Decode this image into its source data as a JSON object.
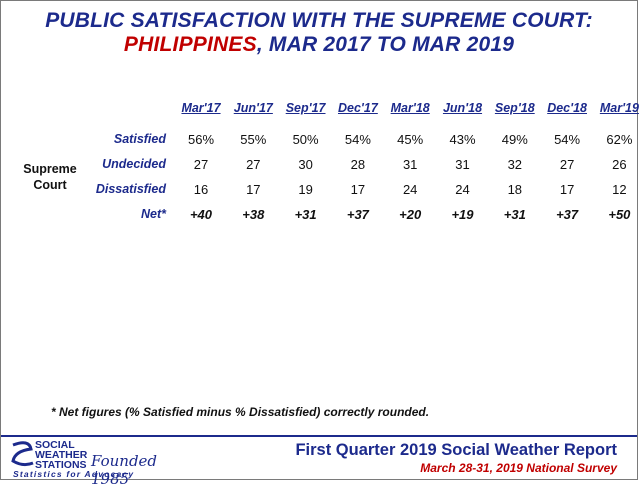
{
  "title": {
    "line1": "PUBLIC SATISFACTION WITH THE SUPREME COURT:",
    "line2_red": "PHILIPPINES",
    "line2_rest": ", MAR 2017 TO MAR 2019"
  },
  "chart_data": {
    "type": "table",
    "group_label": "Supreme Court",
    "columns": [
      "Mar'17",
      "Jun'17",
      "Sep'17",
      "Dec'17",
      "Mar'18",
      "Jun'18",
      "Sep'18",
      "Dec'18",
      "Mar'19"
    ],
    "rows": [
      {
        "label": "Satisfied",
        "values": [
          "56%",
          "55%",
          "50%",
          "54%",
          "45%",
          "43%",
          "49%",
          "54%",
          "62%"
        ]
      },
      {
        "label": "Undecided",
        "values": [
          "27",
          "27",
          "30",
          "28",
          "31",
          "31",
          "32",
          "27",
          "26"
        ]
      },
      {
        "label": "Dissatisfied",
        "values": [
          "16",
          "17",
          "19",
          "17",
          "24",
          "24",
          "18",
          "17",
          "12"
        ]
      },
      {
        "label": "Net*",
        "values": [
          "+40",
          "+38",
          "+31",
          "+37",
          "+20",
          "+19",
          "+31",
          "+37",
          "+50"
        ]
      }
    ]
  },
  "footnote": "* Net figures (% Satisfied minus % Dissatisfied) correctly rounded.",
  "logo": {
    "line1": "SOCIAL",
    "line2": "WEATHER",
    "line3": "STATIONS",
    "founded": "Founded 1985",
    "tagline": "Statistics for Advocacy"
  },
  "report": {
    "title": "First Quarter 2019 Social Weather Report",
    "subtitle": "March 28-31, 2019 National Survey"
  }
}
